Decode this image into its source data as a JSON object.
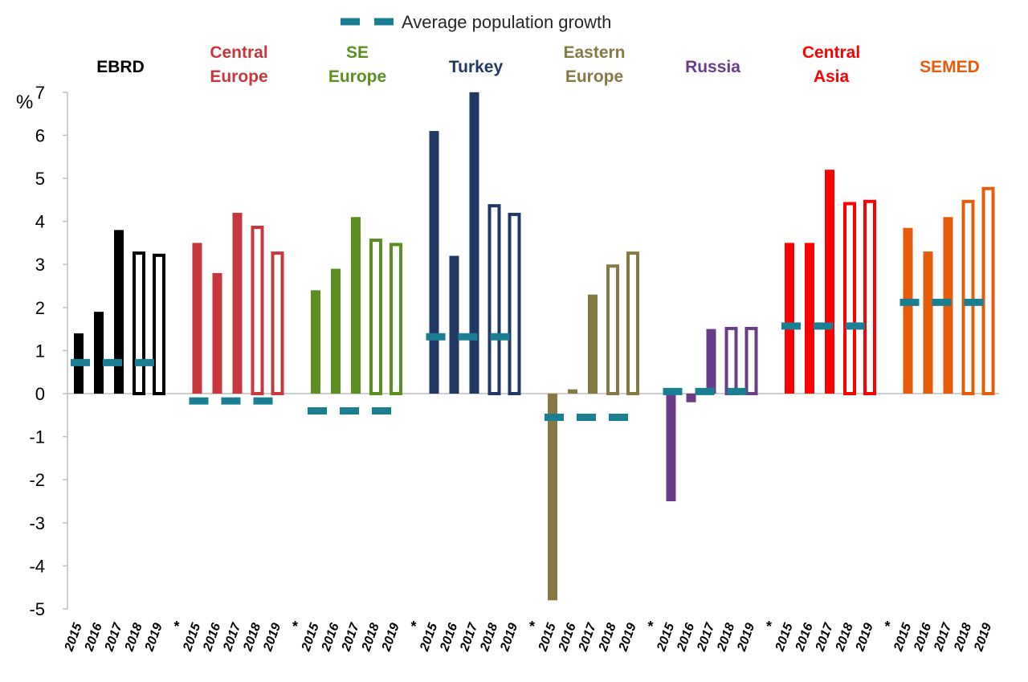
{
  "chart_data": {
    "type": "bar",
    "ylabel": "%",
    "ylim": [
      -5,
      7
    ],
    "yticks": [
      -5,
      -4,
      -3,
      -2,
      -1,
      0,
      1,
      2,
      3,
      4,
      5,
      6,
      7
    ],
    "grid": false,
    "legend": {
      "position": "top-center",
      "label": "Average population growth",
      "color": "#1b7f93"
    },
    "x_tick_labels": [
      "2015",
      "2016",
      "2017",
      "2018",
      "2019"
    ],
    "forecast_mark": "*",
    "forecast_years": [
      "2018",
      "2019"
    ],
    "groups": [
      {
        "name": "EBRD",
        "label_lines": [
          "EBRD"
        ],
        "color": "#000000",
        "values": [
          1.4,
          1.9,
          3.8,
          3.3,
          3.25
        ],
        "avg_population_growth": 0.72
      },
      {
        "name": "Central Europe",
        "label_lines": [
          "Central",
          "Europe"
        ],
        "color": "#c8373e",
        "values": [
          3.5,
          2.8,
          4.2,
          3.9,
          3.3
        ],
        "avg_population_growth": -0.17
      },
      {
        "name": "SE Europe",
        "label_lines": [
          "SE",
          "Europe"
        ],
        "color": "#5b8f22",
        "values": [
          2.4,
          2.9,
          4.1,
          3.6,
          3.5
        ],
        "avg_population_growth": -0.4
      },
      {
        "name": "Turkey",
        "label_lines": [
          "Turkey"
        ],
        "color": "#1f3864",
        "values": [
          6.1,
          3.2,
          7.0,
          4.4,
          4.2
        ],
        "avg_population_growth": 1.32
      },
      {
        "name": "Eastern Europe",
        "label_lines": [
          "Eastern",
          "Europe"
        ],
        "color": "#857a43",
        "values": [
          -4.8,
          0.1,
          2.3,
          3.0,
          3.3
        ],
        "avg_population_growth": -0.55
      },
      {
        "name": "Russia",
        "label_lines": [
          "Russia"
        ],
        "color": "#6a3d8a",
        "values": [
          -2.5,
          -0.2,
          1.5,
          1.55,
          1.55
        ],
        "avg_population_growth": 0.05
      },
      {
        "name": "Central Asia",
        "label_lines": [
          "Central",
          "Asia"
        ],
        "color": "#ff0000",
        "values": [
          3.5,
          3.5,
          5.2,
          4.45,
          4.5
        ],
        "avg_population_growth": 1.57
      },
      {
        "name": "SEMED",
        "label_lines": [
          "SEMED"
        ],
        "color": "#e65c0d",
        "values": [
          3.85,
          3.3,
          4.1,
          4.5,
          4.8
        ],
        "avg_population_growth": 2.12
      }
    ]
  }
}
